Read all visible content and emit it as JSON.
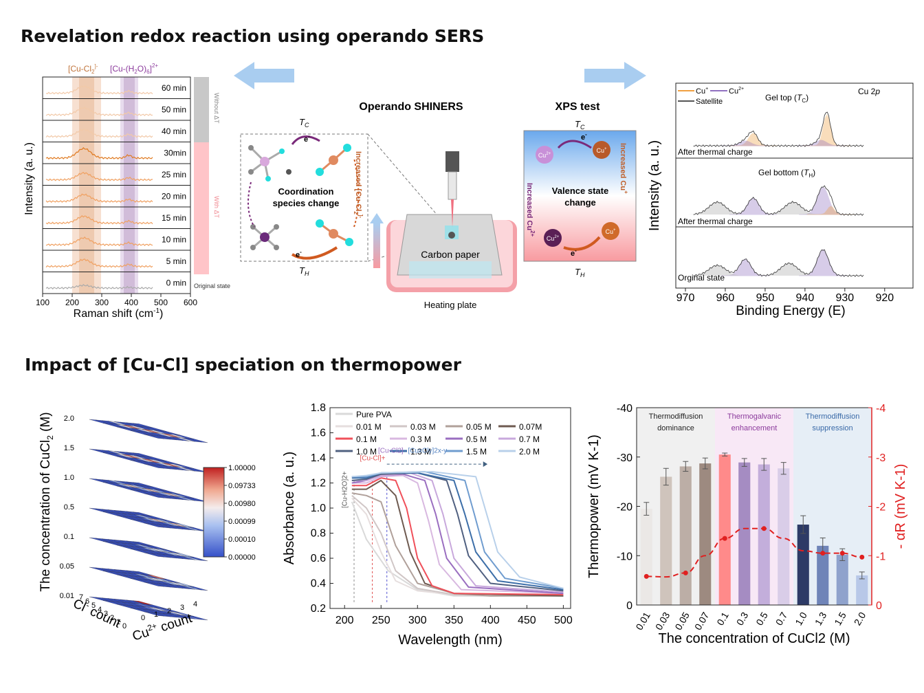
{
  "titles": {
    "top": "Revelation redox reaction using operando SERS",
    "bottom": "Impact of [Cu-Cl] speciation on thermopower"
  },
  "raman": {
    "ylabel": "Intensity (a. u.)",
    "xlabel": "Raman shift (cm",
    "xlabel_sup": "-1",
    "xlabel_end": ")",
    "xticks": [
      "100",
      "200",
      "300",
      "400",
      "500",
      "600"
    ],
    "band1_label": "[Cu-Cl",
    "band1_sub": "2",
    "band1_sup": "]-",
    "band2_label": "[Cu-(H",
    "band2_sub": "2",
    "band2_mid": "O)",
    "band2_sub2": "6",
    "band2_sup": "]2+",
    "rows": [
      "60 min",
      "50 min",
      "40 min",
      "30min",
      "25 min",
      "20 min",
      "15 min",
      "10 min",
      "5 min",
      "0 min"
    ],
    "side_top": "Without ΔT",
    "side_bottom": "With ΔT",
    "original_state": "Original state",
    "colors": {
      "peak1": "#c0733a",
      "peak2": "#8b5a9c",
      "without": "#c8c8c8",
      "with": "#ffb3b8"
    }
  },
  "center": {
    "operando": "Operando SHINERS",
    "xps_test": "XPS test",
    "tc": "T",
    "tc_sub": "C",
    "th": "T",
    "th_sub": "H",
    "electron": "e",
    "coord_line1": "Coordination",
    "coord_line2": "species change",
    "increased_cucl": "Increased [Cu-Cl",
    "increased_cucl_sub": "2",
    "increased_cucl_sup": "]-",
    "carbon_paper": "Carbon paper",
    "heating_plate": "Heating plate",
    "valence_line1": "Valence state",
    "valence_line2": "change",
    "increased_cu_plus": "Increased Cu",
    "increased_cu_plus_sup": "+",
    "increased_cu2_plus": "Increased Cu",
    "increased_cu2_plus_sup": "2+",
    "cu2": "Cu",
    "cu2_sup": "2+",
    "cu1": "Cu",
    "cu1_sup": "+"
  },
  "xps": {
    "ylabel": "Intensity (a. u.)",
    "xlabel": "Binding Energy (E)",
    "xticks": [
      "970",
      "960",
      "950",
      "940",
      "930",
      "920"
    ],
    "legend_cu1": "Cu",
    "legend_cu1_sup": "+",
    "legend_cu2": "Cu",
    "legend_cu2_sup": "2+",
    "legend_sat": "Satellite",
    "cu2p": "Cu 2",
    "cu2p_italic": "p",
    "panel1_title": "Gel top (",
    "panel1_T": "T",
    "panel1_sub": "C",
    "panel1_end": ")",
    "panel1_caption": "After thermal charge",
    "panel2_title": "Gel bottom (",
    "panel2_T": "T",
    "panel2_sub": "H",
    "panel2_end": ")",
    "panel2_caption": "After thermal charge",
    "panel3_caption": "Orginal state"
  },
  "heatmap": {
    "zlabel": "The concentration of CuCl",
    "zlabel_sub": "2",
    "zlabel_end": " (M)",
    "layers": [
      "2.0",
      "1.5",
      "1.0",
      "0.5",
      "0.1",
      "0.05",
      "0.01"
    ],
    "colorbar": [
      "1.00000",
      "0.09733",
      "0.00980",
      "0.00099",
      "0.00010",
      "0.00000"
    ],
    "xlabel": "Cl",
    "xlabel_sup": "-",
    "xlabel_end": " count",
    "ylabel": "Cu",
    "ylabel_sup": "2+",
    "ylabel_end": " count",
    "cl_ticks": [
      "7",
      "6",
      "5",
      "4",
      "3",
      "2",
      "1",
      "0"
    ],
    "cu_ticks": [
      "0",
      "1",
      "2",
      "3",
      "4"
    ]
  },
  "chart_data": [
    {
      "type": "line",
      "xlabel": "Wavelength (nm)",
      "ylabel": "Absorbance (a. u.)",
      "xlim": [
        180,
        510
      ],
      "ylim": [
        0.2,
        1.8
      ],
      "xticks": [
        200,
        250,
        300,
        350,
        400,
        450,
        500
      ],
      "yticks": [
        0.2,
        0.4,
        0.6,
        0.8,
        1.0,
        1.2,
        1.4,
        1.6,
        1.8
      ],
      "annotations": [
        "[Cu-H2O]2+",
        "[Cu-Cl]+",
        "[Cu-Cl2]",
        "[CuxCly]2x-y"
      ],
      "series": [
        {
          "name": "Pure PVA",
          "color": "#d9d9d9",
          "x": [
            210,
            230,
            260,
            300,
            350,
            400,
            450,
            500
          ],
          "y": [
            1.05,
            0.75,
            0.5,
            0.35,
            0.3,
            0.3,
            0.3,
            0.3
          ]
        },
        {
          "name": "0.01 M",
          "color": "#e6dede",
          "x": [
            210,
            230,
            250,
            270,
            300,
            350,
            400,
            500
          ],
          "y": [
            1.08,
            0.95,
            0.65,
            0.42,
            0.34,
            0.31,
            0.3,
            0.3
          ]
        },
        {
          "name": "0.03 M",
          "color": "#d0c6c6",
          "x": [
            210,
            230,
            250,
            270,
            300,
            350,
            400,
            500
          ],
          "y": [
            1.1,
            1.0,
            0.8,
            0.5,
            0.36,
            0.31,
            0.3,
            0.3
          ]
        },
        {
          "name": "0.05 M",
          "color": "#b0a09a",
          "x": [
            210,
            230,
            250,
            270,
            300,
            350,
            400,
            500
          ],
          "y": [
            1.12,
            1.1,
            1.05,
            0.7,
            0.4,
            0.32,
            0.3,
            0.3
          ]
        },
        {
          "name": "0.07M",
          "color": "#6e5a50",
          "x": [
            210,
            230,
            250,
            270,
            290,
            310,
            350,
            500
          ],
          "y": [
            1.15,
            1.15,
            1.22,
            1.1,
            0.65,
            0.4,
            0.32,
            0.3
          ]
        },
        {
          "name": "0.1 M",
          "color": "#f0505a",
          "x": [
            210,
            230,
            250,
            270,
            285,
            300,
            320,
            350,
            500
          ],
          "y": [
            1.18,
            1.18,
            1.24,
            1.22,
            1.0,
            0.6,
            0.38,
            0.32,
            0.31
          ]
        },
        {
          "name": "0.3 M",
          "color": "#d8b8e0",
          "x": [
            210,
            230,
            250,
            280,
            300,
            315,
            330,
            360,
            500
          ],
          "y": [
            1.2,
            1.2,
            1.25,
            1.26,
            1.2,
            0.9,
            0.55,
            0.35,
            0.32
          ]
        },
        {
          "name": "0.5 M",
          "color": "#9a6ec0",
          "x": [
            210,
            230,
            250,
            280,
            310,
            325,
            340,
            370,
            500
          ],
          "y": [
            1.2,
            1.22,
            1.26,
            1.27,
            1.22,
            0.95,
            0.6,
            0.37,
            0.32
          ]
        },
        {
          "name": "0.7 M",
          "color": "#c8a8dc",
          "x": [
            210,
            230,
            250,
            290,
            320,
            335,
            350,
            380,
            500
          ],
          "y": [
            1.22,
            1.22,
            1.26,
            1.28,
            1.22,
            0.95,
            0.6,
            0.38,
            0.33
          ]
        },
        {
          "name": "1.0 M",
          "color": "#506080",
          "x": [
            210,
            230,
            250,
            300,
            340,
            355,
            370,
            400,
            500
          ],
          "y": [
            1.22,
            1.23,
            1.27,
            1.28,
            1.22,
            0.95,
            0.62,
            0.4,
            0.34
          ]
        },
        {
          "name": "1.3 M",
          "color": "#3c6ea8",
          "x": [
            210,
            230,
            250,
            300,
            350,
            365,
            380,
            410,
            500
          ],
          "y": [
            1.24,
            1.24,
            1.28,
            1.28,
            1.22,
            0.95,
            0.65,
            0.42,
            0.35
          ]
        },
        {
          "name": "1.5 M",
          "color": "#6f9ccf",
          "x": [
            210,
            230,
            250,
            310,
            365,
            378,
            392,
            420,
            500
          ],
          "y": [
            1.25,
            1.25,
            1.28,
            1.29,
            1.22,
            0.95,
            0.65,
            0.44,
            0.36
          ]
        },
        {
          "name": "2.0 M",
          "color": "#b8d0ea",
          "x": [
            210,
            230,
            250,
            320,
            380,
            395,
            410,
            440,
            500
          ],
          "y": [
            1.25,
            1.26,
            1.28,
            1.29,
            1.25,
            0.95,
            0.65,
            0.45,
            0.36
          ]
        }
      ]
    },
    {
      "type": "bar",
      "xlabel": "The concentration of CuCl2 (M)",
      "ylabel": "Thermopower (mV K-1)",
      "y2label": "- αR (mV K-1)",
      "categories": [
        "0.01",
        "0.03",
        "0.05",
        "0.07",
        "0.1",
        "0.3",
        "0.5",
        "0.7",
        "1.0",
        "1.3",
        "1.5",
        "2.0"
      ],
      "ylim": [
        0,
        -40
      ],
      "yticks": [
        0,
        -10,
        -20,
        -30,
        -40
      ],
      "y2lim": [
        0,
        -4
      ],
      "y2ticks": [
        0,
        -1,
        -2,
        -3,
        -4
      ],
      "series": [
        {
          "name": "Thermopower",
          "values": [
            -19.5,
            -26,
            -28.1,
            -28.7,
            -30.5,
            -28.9,
            -28.5,
            -27.7,
            -16.3,
            -12,
            -10.2,
            -6
          ],
          "errors": [
            1.3,
            1.7,
            1.0,
            1.1,
            0.3,
            0.8,
            1.2,
            1.2,
            1.8,
            1.6,
            1.2,
            0.7
          ],
          "colors": [
            "#ebe8e6",
            "#cfc4bc",
            "#bcaea6",
            "#9d8a80",
            "#ff8a8a",
            "#a58cc2",
            "#c3aedb",
            "#d9cde8",
            "#2d3a66",
            "#6f84b8",
            "#8fa2cc",
            "#b8c8e8"
          ]
        },
        {
          "name": "- αR",
          "values": [
            -0.58,
            -0.57,
            -0.65,
            -1.0,
            -1.35,
            -1.55,
            -1.55,
            -1.35,
            -1.1,
            -1.05,
            -1.05,
            -0.97
          ]
        }
      ],
      "regions": [
        "Thermodiffusion dominance",
        "Thermogalvanic enhancement",
        "Thermodiffusion suppression"
      ],
      "region_colors": [
        "#f0f0f0",
        "#f8e8f6",
        "#e6eef6"
      ]
    }
  ]
}
